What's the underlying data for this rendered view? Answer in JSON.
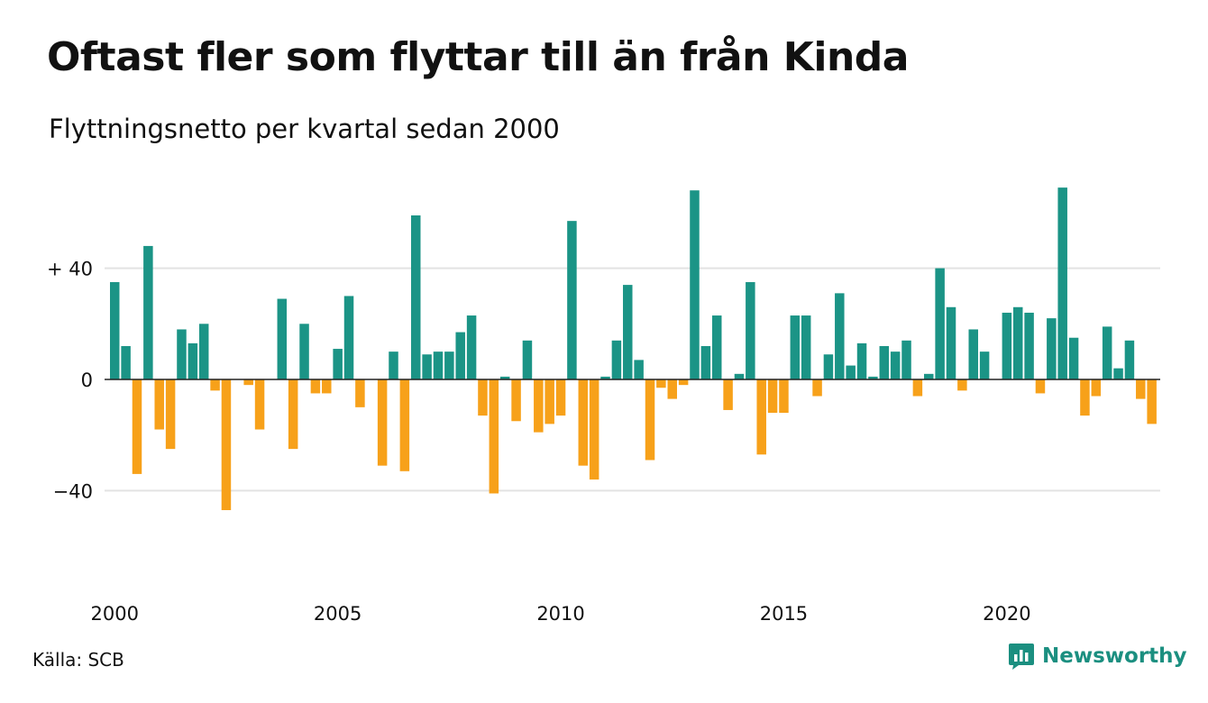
{
  "title": "Oftast fler som flyttar till än från Kinda",
  "subtitle": "Flyttningsnetto per kvartal sedan 2000",
  "source": "Källa: SCB",
  "brand": {
    "name": "Newsworthy",
    "icon": "bar-chart-logo-icon",
    "color": "#1b8f80"
  },
  "colors": {
    "positive": "#1b9486",
    "negative": "#f7a11a",
    "grid": "#e3e3e3",
    "baseline": "#222222"
  },
  "chart_data": {
    "type": "bar",
    "title": "Oftast fler som flyttar till än från Kinda",
    "subtitle": "Flyttningsnetto per kvartal sedan 2000",
    "xlabel": "",
    "ylabel": "",
    "ylim": [
      -60,
      70
    ],
    "grid": true,
    "y_ticks": [
      {
        "value": 40,
        "label": "+ 40"
      },
      {
        "value": 0,
        "label": "0"
      },
      {
        "value": -40,
        "label": "−40"
      }
    ],
    "x_ticks": [
      {
        "year": 2000,
        "label": "2000"
      },
      {
        "year": 2005,
        "label": "2005"
      },
      {
        "year": 2010,
        "label": "2010"
      },
      {
        "year": 2015,
        "label": "2015"
      },
      {
        "year": 2020,
        "label": "2020"
      }
    ],
    "start": "2000-Q1",
    "series": [
      {
        "values": [
          35,
          12,
          -34,
          48,
          -18,
          -25,
          18,
          13,
          20,
          -4,
          -47,
          0,
          -2,
          -18,
          0,
          29,
          -25,
          20,
          -5,
          -5,
          11,
          30,
          -10,
          0,
          -31,
          10,
          -33,
          59,
          9,
          10,
          10,
          17,
          23,
          -13,
          -41,
          1,
          -15,
          14,
          -19,
          -16,
          -13,
          57,
          -31,
          -36,
          1,
          14,
          34,
          7,
          -29,
          -3,
          -7,
          -2,
          68,
          12,
          23,
          -11,
          2,
          35,
          -27,
          -12,
          -12,
          23,
          23,
          -6,
          9,
          31,
          5,
          13,
          1,
          12,
          10,
          14,
          -6,
          2,
          40,
          26,
          -4,
          18,
          10,
          0,
          24,
          26,
          24,
          -5,
          22,
          69,
          15,
          -13,
          -6,
          19,
          4,
          14,
          -7,
          -16
        ]
      }
    ]
  }
}
